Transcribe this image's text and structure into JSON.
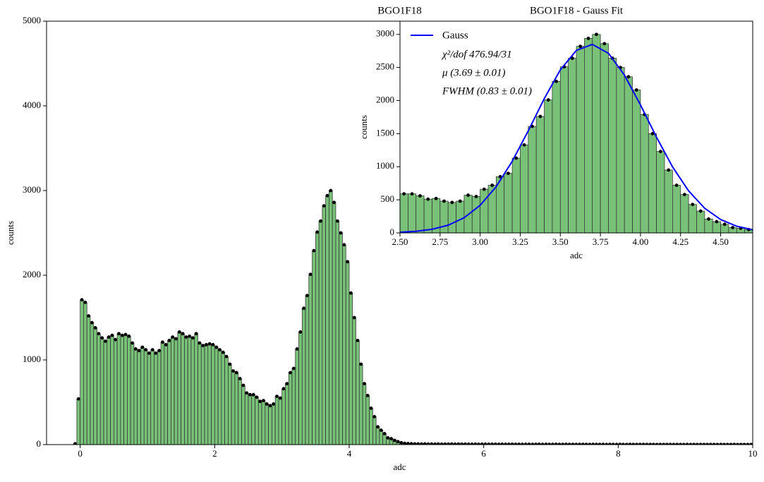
{
  "chart_data": [
    {
      "type": "histogram",
      "title": "BGO1F18",
      "xlabel": "adc",
      "ylabel": "counts",
      "color": "#79c079",
      "xlim": [
        -0.5,
        10
      ],
      "ylim": [
        0,
        5000
      ],
      "xticks": [
        0,
        2,
        4,
        6,
        8,
        10
      ],
      "yticks": [
        0,
        1000,
        2000,
        3000,
        4000,
        5000
      ],
      "bins": [
        -0.1,
        -0.05,
        0,
        0.05,
        0.1,
        0.15,
        0.2,
        0.25,
        0.3,
        0.35,
        0.4,
        0.45,
        0.5,
        0.55,
        0.6,
        0.65,
        0.7,
        0.75,
        0.8,
        0.85,
        0.9,
        0.95,
        1,
        1.05,
        1.1,
        1.15,
        1.2,
        1.25,
        1.3,
        1.35,
        1.4,
        1.45,
        1.5,
        1.55,
        1.6,
        1.65,
        1.7,
        1.75,
        1.8,
        1.85,
        1.9,
        1.95,
        2,
        2.05,
        2.1,
        2.15,
        2.2,
        2.25,
        2.3,
        2.35,
        2.4,
        2.45,
        2.5,
        2.55,
        2.6,
        2.65,
        2.7,
        2.75,
        2.8,
        2.85,
        2.9,
        2.95,
        3,
        3.05,
        3.1,
        3.15,
        3.2,
        3.25,
        3.3,
        3.35,
        3.4,
        3.45,
        3.5,
        3.55,
        3.6,
        3.65,
        3.7,
        3.75,
        3.8,
        3.85,
        3.9,
        3.95,
        4,
        4.05,
        4.1,
        4.15,
        4.2,
        4.25,
        4.3,
        4.35,
        4.4,
        4.45,
        4.5,
        4.55,
        4.6,
        4.65,
        4.7,
        4.75,
        4.8,
        4.85,
        4.9,
        4.95,
        5,
        5.05,
        5.1,
        5.15,
        5.2,
        5.25,
        5.3,
        5.35,
        5.4,
        5.45,
        5.5,
        5.55,
        5.6,
        5.65,
        5.7,
        5.75,
        5.8,
        5.85,
        5.9,
        5.95,
        6,
        6.05,
        6.1,
        6.15,
        6.2,
        6.25,
        6.3,
        6.35,
        6.4,
        6.45,
        6.5,
        6.55,
        6.6,
        6.65,
        6.7,
        6.75,
        6.8,
        6.85,
        6.9,
        6.95,
        7,
        7.05,
        7.1,
        7.15,
        7.2,
        7.25,
        7.3,
        7.35,
        7.4,
        7.45,
        7.5,
        7.55,
        7.6,
        7.65,
        7.7,
        7.75,
        7.8,
        7.85,
        7.9,
        7.95,
        8,
        8.05,
        8.1,
        8.15,
        8.2,
        8.25,
        8.3,
        8.35,
        8.4,
        8.45,
        8.5,
        8.55,
        8.6,
        8.65,
        8.7,
        8.75,
        8.8,
        8.85,
        8.9,
        8.95,
        9,
        9.05,
        9.1,
        9.15,
        9.2,
        9.25,
        9.3,
        9.35,
        9.4,
        9.45,
        9.5,
        9.55,
        9.6,
        9.65,
        9.7,
        9.75,
        9.8,
        9.85,
        9.9,
        9.95,
        10
      ],
      "values": [
        10,
        540,
        1710,
        1680,
        1520,
        1440,
        1380,
        1310,
        1260,
        1220,
        1270,
        1290,
        1240,
        1310,
        1290,
        1300,
        1280,
        1200,
        1130,
        1110,
        1150,
        1120,
        1080,
        1120,
        1080,
        1110,
        1210,
        1180,
        1230,
        1270,
        1250,
        1330,
        1310,
        1270,
        1280,
        1260,
        1310,
        1200,
        1170,
        1180,
        1190,
        1180,
        1150,
        1120,
        1090,
        1040,
        950,
        870,
        850,
        780,
        700,
        610,
        590,
        590,
        560,
        510,
        520,
        480,
        460,
        480,
        570,
        550,
        660,
        720,
        850,
        900,
        1130,
        1330,
        1610,
        1760,
        2010,
        2290,
        2510,
        2640,
        2820,
        2940,
        3000,
        2860,
        2640,
        2500,
        2360,
        2160,
        1790,
        1500,
        1230,
        950,
        720,
        580,
        430,
        330,
        210,
        170,
        130,
        80,
        70,
        50,
        35,
        22,
        15,
        12,
        10,
        8,
        8,
        7,
        8,
        6,
        7,
        6,
        7,
        5,
        6,
        6,
        7,
        5,
        6,
        5,
        6,
        5,
        5,
        6,
        4,
        5,
        5,
        4,
        5,
        5,
        4,
        5,
        4,
        4,
        5,
        4,
        4,
        3,
        4,
        4,
        3,
        4,
        4,
        3,
        4,
        3,
        3,
        4,
        3,
        3,
        4,
        3,
        3,
        2,
        3,
        3,
        3,
        2,
        3,
        3,
        2,
        3,
        2,
        3,
        2,
        2,
        3,
        2,
        2,
        3,
        2,
        2,
        2,
        3,
        2,
        2,
        2,
        1,
        2,
        2,
        2,
        2,
        1,
        2,
        2,
        1,
        2,
        1,
        2,
        1,
        2,
        1,
        1,
        2,
        1,
        1,
        2,
        1,
        1,
        1,
        2,
        1,
        1,
        1,
        1,
        1
      ]
    },
    {
      "type": "histogram",
      "title": "BGO1F18 - Gauss Fit",
      "xlabel": "adc",
      "ylabel": "counts",
      "color": "#79c079",
      "xlim": [
        2.5,
        4.7
      ],
      "ylim": [
        0,
        3200
      ],
      "xticks": [
        {
          "value": 2.5,
          "label": "2.50"
        },
        {
          "value": 2.75,
          "label": "2.75"
        },
        {
          "value": 3,
          "label": "3.00"
        },
        {
          "value": 3.25,
          "label": "3.25"
        },
        {
          "value": 3.5,
          "label": "3.50"
        },
        {
          "value": 3.75,
          "label": "3.75"
        },
        {
          "value": 4,
          "label": "4.00"
        },
        {
          "value": 4.25,
          "label": "4.25"
        },
        {
          "value": 4.5,
          "label": "4.50"
        }
      ],
      "yticks": [
        0,
        500,
        1000,
        1500,
        2000,
        2500,
        3000
      ],
      "bins": [
        2.5,
        2.55,
        2.6,
        2.65,
        2.7,
        2.75,
        2.8,
        2.85,
        2.9,
        2.95,
        3,
        3.05,
        3.1,
        3.15,
        3.2,
        3.25,
        3.3,
        3.35,
        3.4,
        3.45,
        3.5,
        3.55,
        3.6,
        3.65,
        3.7,
        3.75,
        3.8,
        3.85,
        3.9,
        3.95,
        4,
        4.05,
        4.1,
        4.15,
        4.2,
        4.25,
        4.3,
        4.35,
        4.4,
        4.45,
        4.5,
        4.55,
        4.6,
        4.65,
        4.7
      ],
      "values": [
        590,
        590,
        560,
        510,
        520,
        480,
        460,
        480,
        570,
        550,
        660,
        720,
        850,
        900,
        1130,
        1330,
        1610,
        1760,
        2010,
        2290,
        2510,
        2640,
        2820,
        2940,
        3000,
        2860,
        2640,
        2500,
        2360,
        2160,
        1790,
        1500,
        1230,
        950,
        720,
        580,
        430,
        330,
        210,
        170,
        130,
        80,
        70,
        50
      ],
      "fit": {
        "name": "Gauss",
        "color": "#0000ff",
        "x": [
          2.5,
          2.6,
          2.7,
          2.8,
          2.9,
          3.0,
          3.1,
          3.2,
          3.3,
          3.4,
          3.5,
          3.6,
          3.7,
          3.8,
          3.9,
          4.0,
          4.1,
          4.2,
          4.3,
          4.4,
          4.5,
          4.6,
          4.7
        ],
        "values": [
          9,
          24,
          55,
          116,
          229,
          417,
          699,
          1082,
          1543,
          2030,
          2464,
          2758,
          2849,
          2714,
          2385,
          1934,
          1446,
          998,
          635,
          373,
          202,
          101,
          46
        ]
      },
      "annotations": [
        "χ²/dof 476.94/31",
        "μ (3.69 ± 0.01)",
        "FWHM (0.83 ± 0.01)"
      ]
    }
  ]
}
